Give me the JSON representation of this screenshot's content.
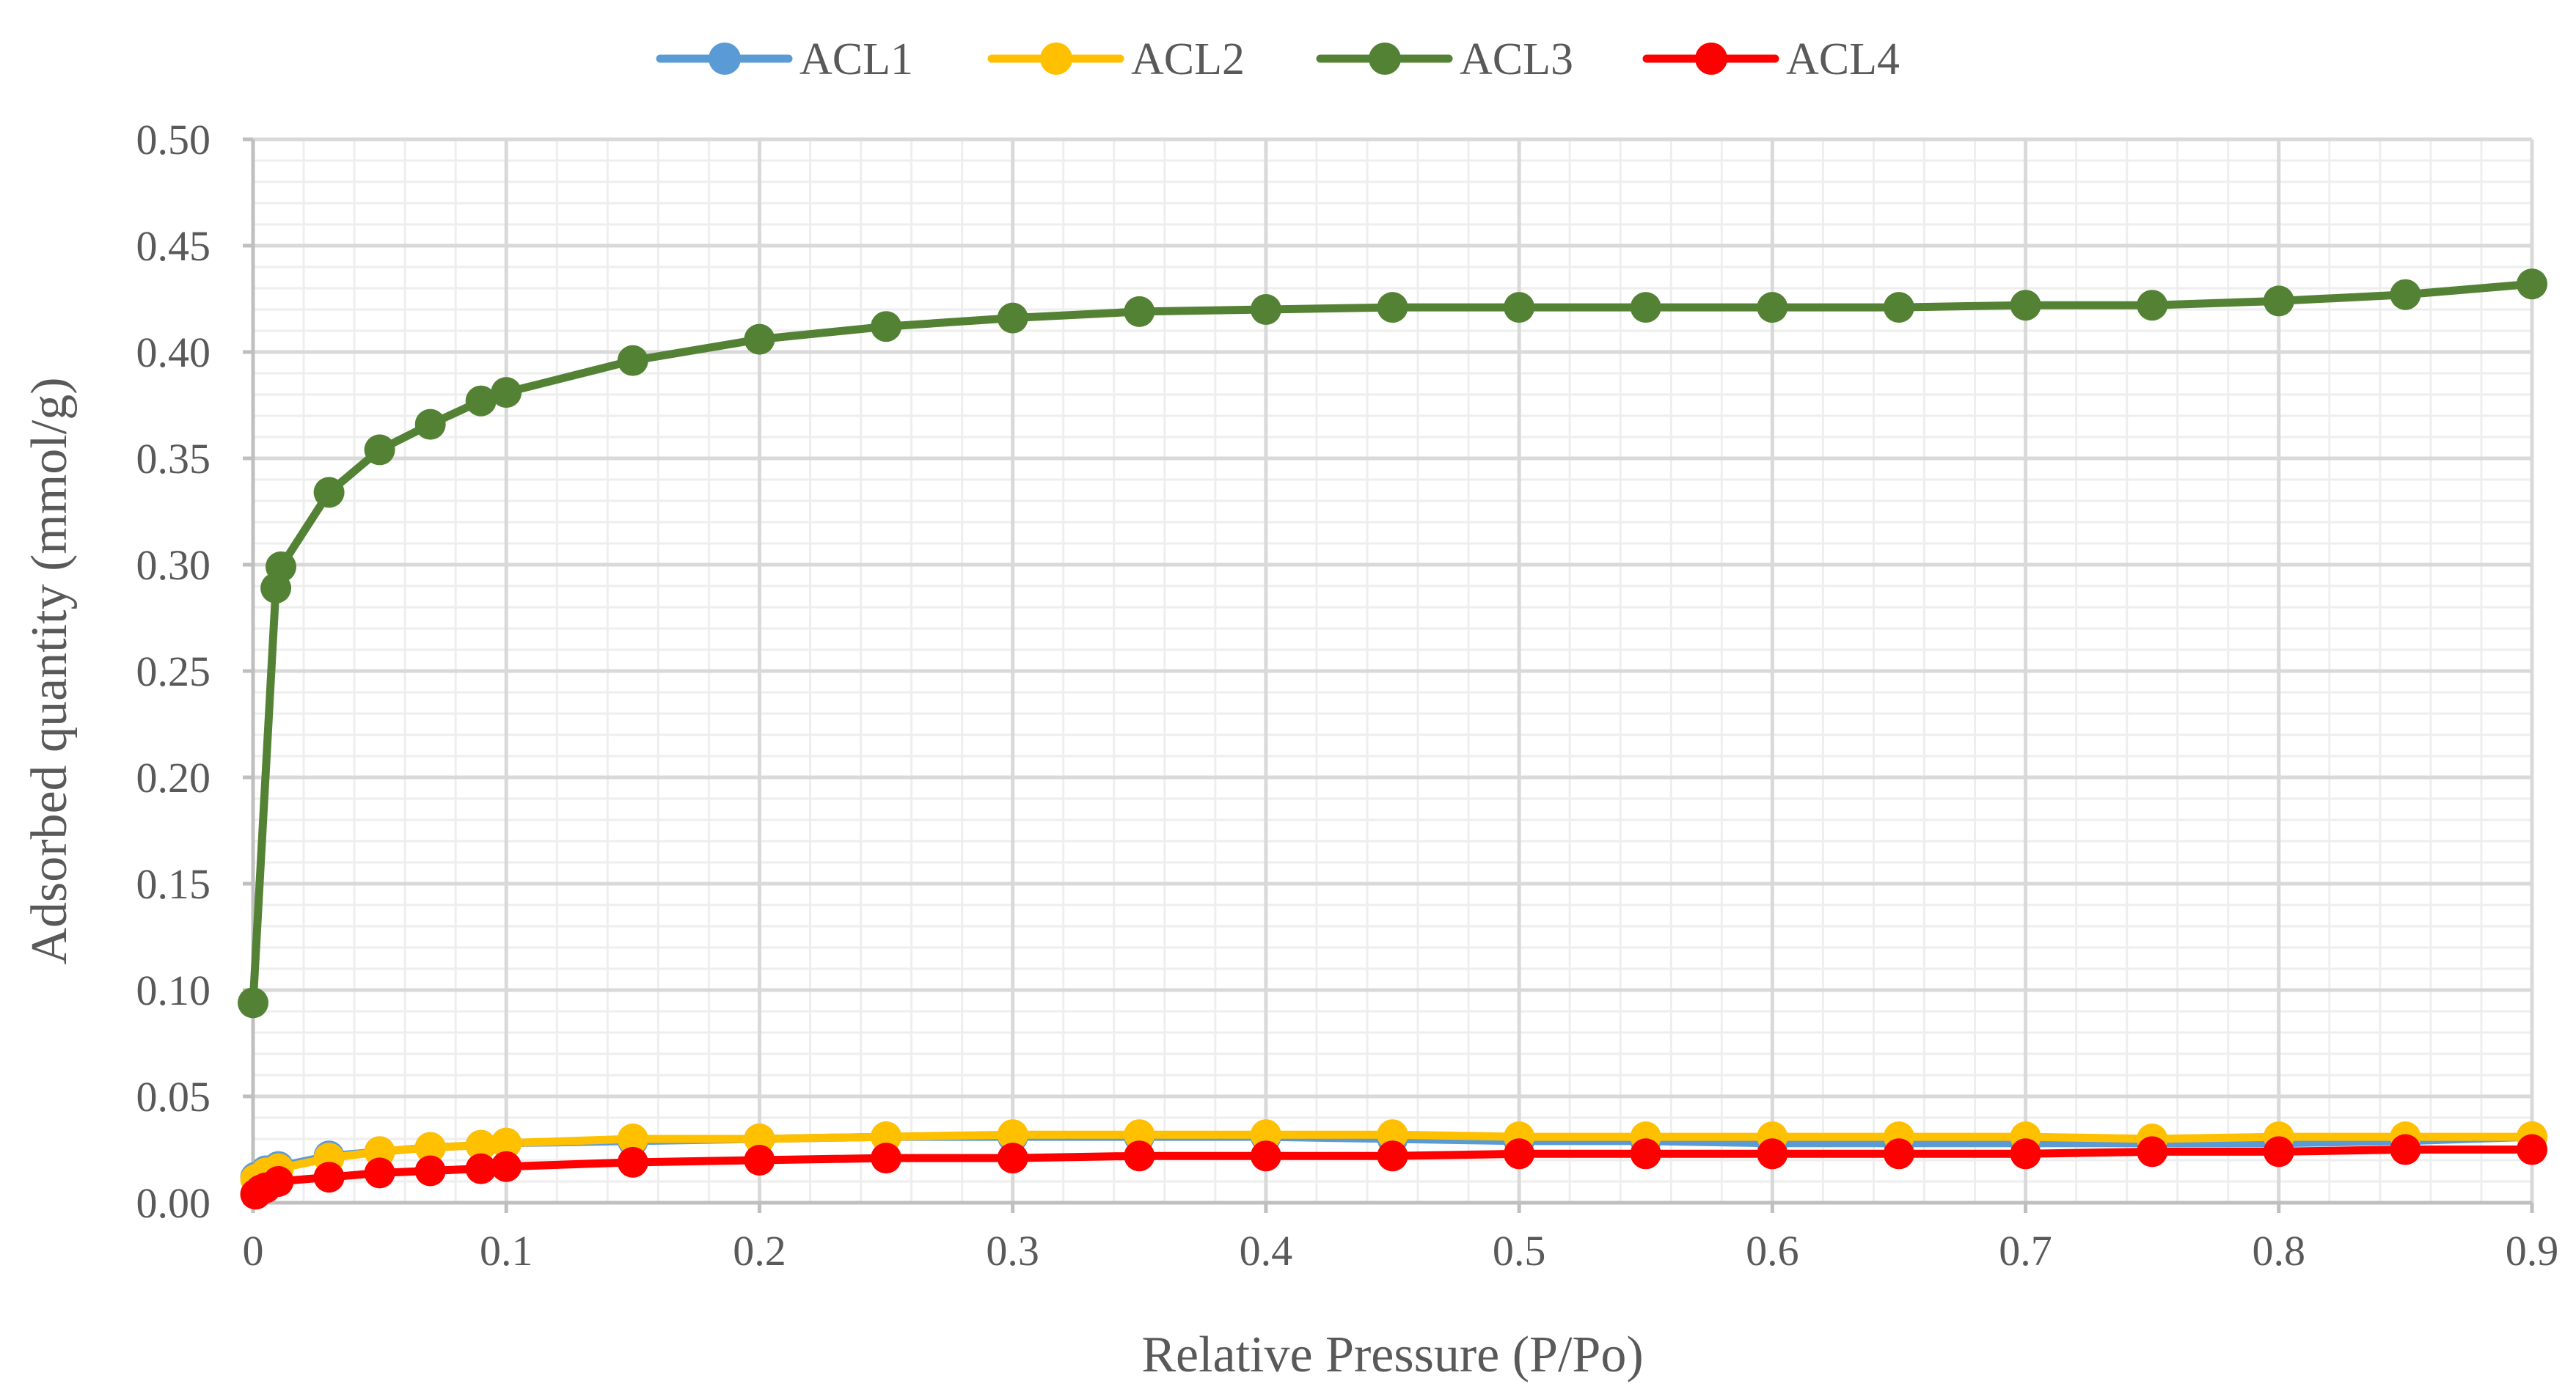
{
  "chart_data": {
    "type": "line",
    "title": "",
    "xlabel": "Relative Pressure (P/Po)",
    "ylabel": "Adsorbed quantity (mmol/g)",
    "xlim": [
      0,
      0.9
    ],
    "ylim": [
      0,
      0.5
    ],
    "x_ticks": [
      0,
      0.1,
      0.2,
      0.3,
      0.4,
      0.5,
      0.6,
      0.7,
      0.8,
      0.9
    ],
    "x_tick_labels": [
      "0",
      "0.1",
      "0.2",
      "0.3",
      "0.4",
      "0.5",
      "0.6",
      "0.7",
      "0.8",
      "0.9"
    ],
    "y_ticks": [
      0,
      0.05,
      0.1,
      0.15,
      0.2,
      0.25,
      0.3,
      0.35,
      0.4,
      0.45,
      0.5
    ],
    "y_tick_labels": [
      "0.00",
      "0.05",
      "0.10",
      "0.15",
      "0.20",
      "0.25",
      "0.30",
      "0.35",
      "0.40",
      "0.45",
      "0.50"
    ],
    "grid": true,
    "minor_grid": true,
    "legend_position": "top",
    "series": [
      {
        "name": "ACL1",
        "color": "#5B9BD5",
        "x": [
          0.001,
          0.005,
          0.01,
          0.03,
          0.05,
          0.07,
          0.09,
          0.1,
          0.15,
          0.2,
          0.25,
          0.3,
          0.35,
          0.4,
          0.45,
          0.5,
          0.55,
          0.6,
          0.65,
          0.7,
          0.75,
          0.8,
          0.85,
          0.9
        ],
        "y": [
          0.012,
          0.015,
          0.017,
          0.022,
          0.024,
          0.026,
          0.027,
          0.028,
          0.029,
          0.03,
          0.031,
          0.031,
          0.031,
          0.031,
          0.03,
          0.029,
          0.029,
          0.028,
          0.028,
          0.028,
          0.028,
          0.028,
          0.029,
          0.031
        ]
      },
      {
        "name": "ACL2",
        "color": "#FFC000",
        "x": [
          0.001,
          0.005,
          0.01,
          0.03,
          0.05,
          0.07,
          0.09,
          0.1,
          0.15,
          0.2,
          0.25,
          0.3,
          0.35,
          0.4,
          0.45,
          0.5,
          0.55,
          0.6,
          0.65,
          0.7,
          0.75,
          0.8,
          0.85,
          0.9
        ],
        "y": [
          0.011,
          0.014,
          0.016,
          0.021,
          0.024,
          0.026,
          0.027,
          0.028,
          0.03,
          0.03,
          0.031,
          0.032,
          0.032,
          0.032,
          0.032,
          0.031,
          0.031,
          0.031,
          0.031,
          0.031,
          0.03,
          0.031,
          0.031,
          0.031
        ]
      },
      {
        "name": "ACL3",
        "color": "#548235",
        "x": [
          0.0,
          0.009,
          0.011,
          0.03,
          0.05,
          0.07,
          0.09,
          0.1,
          0.15,
          0.2,
          0.25,
          0.3,
          0.35,
          0.4,
          0.45,
          0.5,
          0.55,
          0.6,
          0.65,
          0.7,
          0.75,
          0.8,
          0.85,
          0.9
        ],
        "y": [
          0.094,
          0.289,
          0.299,
          0.334,
          0.354,
          0.366,
          0.377,
          0.381,
          0.396,
          0.406,
          0.412,
          0.416,
          0.419,
          0.42,
          0.421,
          0.421,
          0.421,
          0.421,
          0.421,
          0.422,
          0.422,
          0.424,
          0.427,
          0.432
        ]
      },
      {
        "name": "ACL4",
        "color": "#FF0000",
        "x": [
          0.001,
          0.003,
          0.005,
          0.01,
          0.03,
          0.05,
          0.07,
          0.09,
          0.1,
          0.15,
          0.2,
          0.25,
          0.3,
          0.35,
          0.4,
          0.45,
          0.5,
          0.55,
          0.6,
          0.65,
          0.7,
          0.75,
          0.8,
          0.85,
          0.9
        ],
        "y": [
          0.004,
          0.006,
          0.007,
          0.01,
          0.012,
          0.014,
          0.015,
          0.016,
          0.017,
          0.019,
          0.02,
          0.021,
          0.021,
          0.022,
          0.022,
          0.022,
          0.023,
          0.023,
          0.023,
          0.023,
          0.023,
          0.024,
          0.024,
          0.025,
          0.025
        ]
      }
    ]
  }
}
